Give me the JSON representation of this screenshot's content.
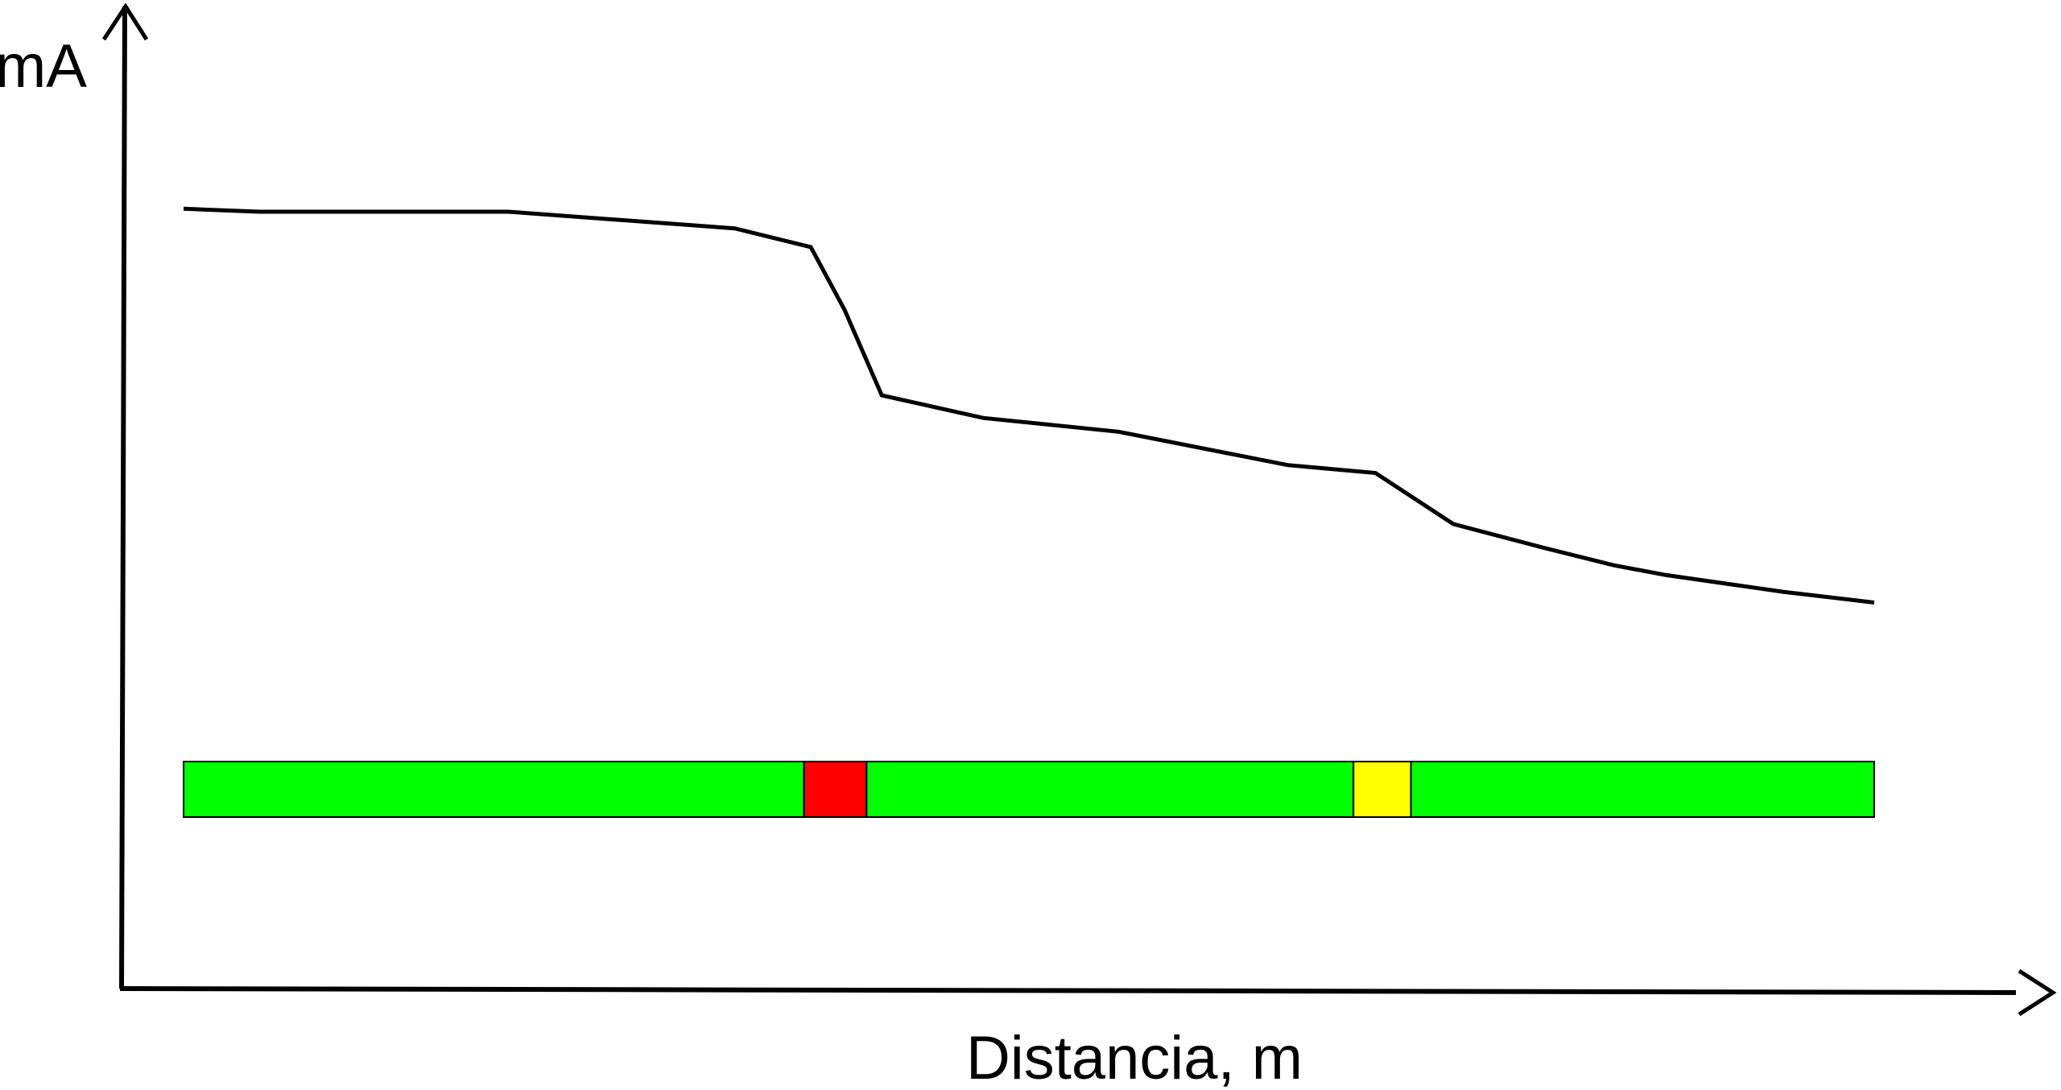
{
  "chart_data": {
    "type": "line",
    "title": "",
    "xlabel": "Distancia, m",
    "ylabel": "mA",
    "grid": false,
    "legend": "none",
    "xlim": [
      0,
      100
    ],
    "ylim": [
      0,
      100
    ],
    "series": [
      {
        "values_x": [
          0,
          4.5,
          19.2,
          32.6,
          37.1,
          39.1,
          41.3,
          47.3,
          55.3,
          65.3,
          70.5,
          75.1,
          80.4,
          84.6,
          87.7,
          94.6,
          100
        ],
        "values_y": [
          79.4,
          79.1,
          79.1,
          77.4,
          75.5,
          69.1,
          60.4,
          58.1,
          56.7,
          53.3,
          52.5,
          47.3,
          44.9,
          43.1,
          42.1,
          40.4,
          39.3
        ],
        "color": "#000000"
      }
    ],
    "status_bar": {
      "segments": [
        {
          "from": 0,
          "to": 36.7,
          "color": "#00ff00",
          "status": "ok"
        },
        {
          "from": 36.7,
          "to": 40.4,
          "color": "#ff0000",
          "status": "defect"
        },
        {
          "from": 40.4,
          "to": 69.2,
          "color": "#00ff00",
          "status": "ok"
        },
        {
          "from": 69.2,
          "to": 72.6,
          "color": "#ffff00",
          "status": "warning"
        },
        {
          "from": 72.6,
          "to": 100,
          "color": "#00ff00",
          "status": "ok"
        }
      ]
    }
  }
}
